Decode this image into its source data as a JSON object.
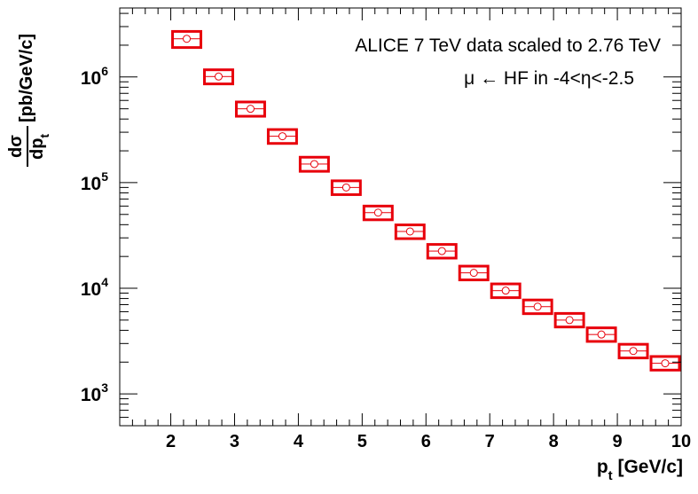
{
  "chart_data": {
    "type": "scatter",
    "title": "",
    "xlabel": {
      "main": "p",
      "sub": "t",
      "unit": " [GeV/c]"
    },
    "ylabel": {
      "numerator": "dσ",
      "denominator": "dp",
      "denominator_sub": "t",
      "unit": " [pb/GeV/c]"
    },
    "xlim": [
      1.2,
      10.0
    ],
    "ylim": [
      500,
      4500000
    ],
    "yscale": "log",
    "grid": false,
    "x_ticks": [
      "2",
      "3",
      "4",
      "5",
      "6",
      "7",
      "8",
      "9",
      "10"
    ],
    "y_ticks": [
      {
        "base": "10",
        "exp": "3"
      },
      {
        "base": "10",
        "exp": "4"
      },
      {
        "base": "10",
        "exp": "5"
      },
      {
        "base": "10",
        "exp": "6"
      }
    ],
    "legend_lines": [
      "ALICE 7 TeV data scaled to 2.76 TeV",
      "μ ← HF in -4<η<-2.5"
    ],
    "legend_position": "top-right",
    "series": [
      {
        "color": "#e8000b",
        "marker": "open-circle",
        "x_low": [
          2.0,
          2.5,
          3.0,
          3.5,
          4.0,
          4.5,
          5.0,
          5.5,
          6.0,
          6.5,
          7.0,
          7.5,
          8.0,
          8.5,
          9.0,
          9.5
        ],
        "x_high": [
          2.5,
          3.0,
          3.5,
          4.0,
          4.5,
          5.0,
          5.5,
          6.0,
          6.5,
          7.0,
          7.5,
          8.0,
          8.5,
          9.0,
          9.5,
          10.0
        ],
        "x": [
          2.25,
          2.75,
          3.25,
          3.75,
          4.25,
          4.75,
          5.25,
          5.75,
          6.25,
          6.75,
          7.25,
          7.75,
          8.25,
          8.75,
          9.25,
          9.75
        ],
        "y": [
          2300000,
          1010000,
          500000,
          275000,
          150000,
          90000,
          52000,
          34500,
          22500,
          14000,
          9500,
          6700,
          5000,
          3650,
          2550,
          1950
        ],
        "sys_low": [
          1900000,
          860000,
          425000,
          235000,
          128000,
          77000,
          44500,
          29500,
          19300,
          12000,
          8150,
          5750,
          4300,
          3140,
          2190,
          1680
        ],
        "sys_high": [
          2700000,
          1170000,
          580000,
          318000,
          174000,
          104000,
          60000,
          39800,
          26000,
          16200,
          11000,
          7750,
          5780,
          4220,
          2950,
          2260
        ]
      }
    ]
  }
}
